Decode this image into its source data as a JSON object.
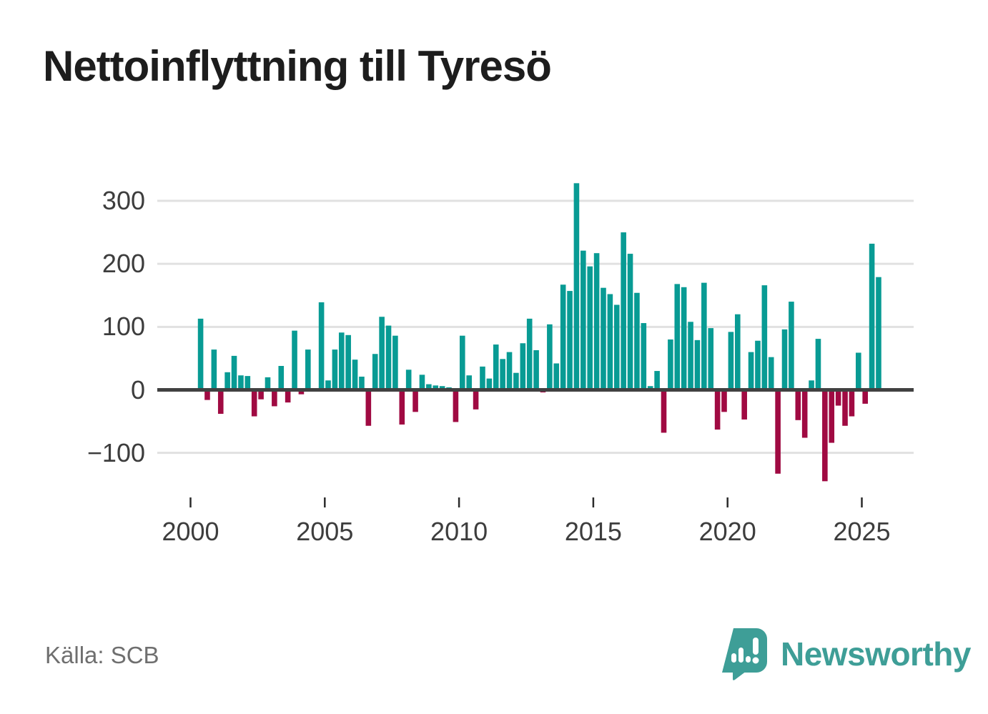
{
  "title": "Nettoinflyttning till Tyresö",
  "source": "Källa: SCB",
  "branding": {
    "name": "Newsworthy",
    "icon": "bar-chart-speech-bubble-icon",
    "color": "#3e9e97"
  },
  "colors": {
    "positive_bar": "#089b94",
    "negative_bar": "#a00a42",
    "gridline": "#e1e1e1",
    "zero_line": "#414141",
    "axis_text": "#3d3d3d",
    "title_text": "#1d1d1d",
    "source_text": "#6f6f6f"
  },
  "chart_data": {
    "type": "bar",
    "title": "Nettoinflyttning till Tyresö",
    "xlabel": "",
    "ylabel": "",
    "frequency": "quarterly",
    "start": {
      "year": 2000,
      "quarter": 2
    },
    "end": {
      "year": 2025,
      "quarter": 3
    },
    "values": [
      113,
      -16,
      64,
      -38,
      28,
      54,
      23,
      22,
      -42,
      -15,
      20,
      -26,
      38,
      -20,
      94,
      -7,
      64,
      1,
      139,
      15,
      64,
      91,
      87,
      48,
      21,
      -57,
      57,
      116,
      102,
      86,
      -55,
      32,
      -35,
      24,
      9,
      7,
      6,
      4,
      -51,
      86,
      23,
      -31,
      37,
      18,
      72,
      49,
      60,
      27,
      74,
      113,
      63,
      -4,
      104,
      42,
      167,
      157,
      328,
      221,
      196,
      217,
      162,
      152,
      135,
      250,
      216,
      154,
      106,
      6,
      30,
      -68,
      80,
      168,
      163,
      108,
      79,
      170,
      98,
      -63,
      -35,
      92,
      120,
      -47,
      60,
      78,
      166,
      52,
      -133,
      96,
      140,
      -48,
      -76,
      15,
      81,
      -145,
      -84,
      -25,
      -57,
      -42,
      59,
      -22,
      232,
      179
    ],
    "yticks": [
      300,
      200,
      100,
      0,
      -100
    ],
    "xticks": [
      2000,
      2005,
      2010,
      2015,
      2020,
      2025
    ],
    "ylim": [
      -160,
      340
    ],
    "grid": "horizontal",
    "legend": "none"
  }
}
